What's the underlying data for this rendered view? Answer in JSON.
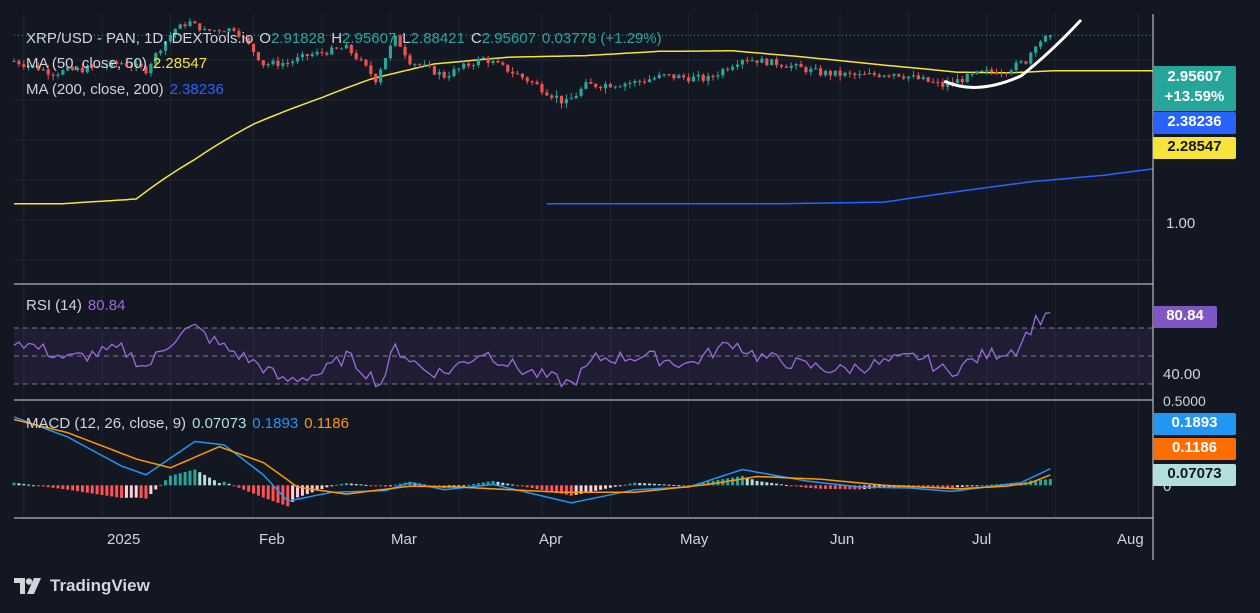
{
  "header": {
    "symbol": "XRP/USD - PAN, 1D, DEXTools.io",
    "open_label": "O",
    "open": "2.91828",
    "high_label": "H",
    "high": "2.95607",
    "low_label": "L",
    "low": "2.88421",
    "close_label": "C",
    "close": "2.95607",
    "change": "0.03778 (+1.29%)"
  },
  "ma50": {
    "label": "MA (50, close, 50)",
    "value": "2.28547",
    "color": "#f7e43b"
  },
  "ma200": {
    "label": "MA (200, close, 200)",
    "value": "2.38236",
    "color": "#2962ff"
  },
  "rsi": {
    "label": "RSI (14)",
    "value": "80.84",
    "color": "#9c6ade",
    "axis": [
      "40.00"
    ]
  },
  "macd": {
    "label": "MACD (12, 26, close, 9)",
    "hist": "0.07073",
    "macd": "0.1893",
    "signal": "0.1186",
    "axis": [
      "0.5000",
      "0"
    ]
  },
  "price_axis": {
    "label_1": "1.00"
  },
  "badges": {
    "price": "2.95607",
    "price_change": "+13.59%",
    "ma200": "2.38236",
    "ma50": "2.28547",
    "rsi": "80.84",
    "macd": "0.1893",
    "signal": "0.1186",
    "hist": "0.07073"
  },
  "x_axis": [
    "2025",
    "Feb",
    "Mar",
    "Apr",
    "May",
    "Jun",
    "Jul",
    "Aug"
  ],
  "brand": "TradingView",
  "colors": {
    "up": "#26a69a",
    "down": "#ef5350",
    "bg": "#131722",
    "macd": "#2196f3",
    "signal": "#ff9800",
    "arrow": "#ffffff"
  },
  "chart_data": {
    "type": "candlestick",
    "x_range": [
      "2024-12-14",
      "2025-08-04"
    ],
    "price_ylim": [
      0.5,
      3.35
    ],
    "price_anchors": [
      [
        "2024-12-14",
        2.45
      ],
      [
        "2024-12-22",
        2.25
      ],
      [
        "2025-01-01",
        2.35
      ],
      [
        "2025-01-05",
        2.42
      ],
      [
        "2025-01-10",
        2.3
      ],
      [
        "2025-01-16",
        3.1
      ],
      [
        "2025-01-19",
        3.25
      ],
      [
        "2025-01-22",
        3.05
      ],
      [
        "2025-01-28",
        3.1
      ],
      [
        "2025-02-03",
        2.4
      ],
      [
        "2025-02-08",
        2.42
      ],
      [
        "2025-02-12",
        2.55
      ],
      [
        "2025-02-20",
        2.7
      ],
      [
        "2025-02-26",
        2.15
      ],
      [
        "2025-03-02",
        2.9
      ],
      [
        "2025-03-05",
        2.45
      ],
      [
        "2025-03-12",
        2.2
      ],
      [
        "2025-03-20",
        2.5
      ],
      [
        "2025-03-28",
        2.18
      ],
      [
        "2025-04-06",
        1.8
      ],
      [
        "2025-04-10",
        2.05
      ],
      [
        "2025-04-20",
        2.1
      ],
      [
        "2025-04-26",
        2.2
      ],
      [
        "2025-05-05",
        2.15
      ],
      [
        "2025-05-12",
        2.5
      ],
      [
        "2025-05-20",
        2.4
      ],
      [
        "2025-05-28",
        2.25
      ],
      [
        "2025-06-05",
        2.2
      ],
      [
        "2025-06-12",
        2.25
      ],
      [
        "2025-06-22",
        2.05
      ],
      [
        "2025-06-30",
        2.25
      ],
      [
        "2025-07-05",
        2.3
      ],
      [
        "2025-07-09",
        2.45
      ],
      [
        "2025-07-11",
        2.78
      ],
      [
        "2025-07-14",
        2.95607
      ]
    ],
    "ma50_anchors": [
      [
        "2024-12-14",
        0.87
      ],
      [
        "2024-12-24",
        0.87
      ],
      [
        "2025-01-08",
        0.9
      ],
      [
        "2025-01-20",
        1.2
      ],
      [
        "2025-02-01",
        1.55
      ],
      [
        "2025-02-15",
        1.88
      ],
      [
        "2025-02-25",
        2.15
      ],
      [
        "2025-03-10",
        2.4
      ],
      [
        "2025-03-25",
        2.52
      ],
      [
        "2025-04-10",
        2.55
      ],
      [
        "2025-04-25",
        2.63
      ],
      [
        "2025-05-10",
        2.64
      ],
      [
        "2025-05-25",
        2.52
      ],
      [
        "2025-06-10",
        2.38
      ],
      [
        "2025-06-25",
        2.26
      ],
      [
        "2025-07-06",
        2.25
      ],
      [
        "2025-07-15",
        2.28547
      ],
      [
        "2025-08-04",
        2.285
      ]
    ],
    "ma200_anchors": [
      [
        "2025-04-02",
        0.87
      ],
      [
        "2025-05-20",
        0.87
      ],
      [
        "2025-06-10",
        0.88
      ],
      [
        "2025-06-25",
        0.95
      ],
      [
        "2025-07-10",
        1.02
      ],
      [
        "2025-07-25",
        1.07
      ],
      [
        "2025-08-04",
        1.12
      ]
    ],
    "rsi_ylim": [
      20,
      100
    ],
    "rsi_levels": [
      70,
      50,
      30
    ],
    "rsi_anchors": [
      [
        "2024-12-14",
        62
      ],
      [
        "2024-12-25",
        48
      ],
      [
        "2025-01-05",
        55
      ],
      [
        "2025-01-10",
        42
      ],
      [
        "2025-01-17",
        67
      ],
      [
        "2025-01-20",
        70
      ],
      [
        "2025-01-25",
        58
      ],
      [
        "2025-02-03",
        42
      ],
      [
        "2025-02-07",
        32
      ],
      [
        "2025-02-15",
        38
      ],
      [
        "2025-02-20",
        50
      ],
      [
        "2025-02-27",
        30
      ],
      [
        "2025-03-02",
        56
      ],
      [
        "2025-03-08",
        40
      ],
      [
        "2025-03-12",
        38
      ],
      [
        "2025-03-20",
        53
      ],
      [
        "2025-03-28",
        40
      ],
      [
        "2025-04-07",
        30
      ],
      [
        "2025-04-12",
        48
      ],
      [
        "2025-04-22",
        50
      ],
      [
        "2025-05-01",
        44
      ],
      [
        "2025-05-10",
        60
      ],
      [
        "2025-05-15",
        50
      ],
      [
        "2025-05-25",
        43
      ],
      [
        "2025-06-01",
        40
      ],
      [
        "2025-06-10",
        45
      ],
      [
        "2025-06-17",
        50
      ],
      [
        "2025-06-23",
        38
      ],
      [
        "2025-06-30",
        50
      ],
      [
        "2025-07-07",
        55
      ],
      [
        "2025-07-11",
        75
      ],
      [
        "2025-07-14",
        80.84
      ]
    ],
    "macd_ylim": [
      -0.35,
      0.95
    ],
    "macd_anchors": [
      [
        "2024-12-14",
        0.78
      ],
      [
        "2024-12-25",
        0.55
      ],
      [
        "2025-01-05",
        0.22
      ],
      [
        "2025-01-10",
        0.12
      ],
      [
        "2025-01-20",
        0.5
      ],
      [
        "2025-01-26",
        0.46
      ],
      [
        "2025-02-03",
        0.12
      ],
      [
        "2025-02-08",
        -0.18
      ],
      [
        "2025-02-17",
        -0.08
      ],
      [
        "2025-02-28",
        -0.06
      ],
      [
        "2025-03-05",
        0.03
      ],
      [
        "2025-03-12",
        -0.05
      ],
      [
        "2025-03-22",
        0.01
      ],
      [
        "2025-04-07",
        -0.2
      ],
      [
        "2025-04-20",
        -0.05
      ],
      [
        "2025-05-01",
        -0.02
      ],
      [
        "2025-05-12",
        0.18
      ],
      [
        "2025-05-25",
        0.05
      ],
      [
        "2025-06-05",
        -0.02
      ],
      [
        "2025-06-15",
        -0.03
      ],
      [
        "2025-06-24",
        -0.07
      ],
      [
        "2025-07-02",
        -0.01
      ],
      [
        "2025-07-08",
        0.03
      ],
      [
        "2025-07-14",
        0.1893
      ]
    ],
    "signal_anchors": [
      [
        "2024-12-14",
        0.75
      ],
      [
        "2024-12-25",
        0.6
      ],
      [
        "2025-01-08",
        0.3
      ],
      [
        "2025-01-15",
        0.2
      ],
      [
        "2025-01-25",
        0.44
      ],
      [
        "2025-02-03",
        0.26
      ],
      [
        "2025-02-10",
        -0.02
      ],
      [
        "2025-02-20",
        -0.1
      ],
      [
        "2025-03-05",
        -0.01
      ],
      [
        "2025-03-15",
        -0.02
      ],
      [
        "2025-04-05",
        -0.08
      ],
      [
        "2025-04-20",
        -0.08
      ],
      [
        "2025-05-05",
        0.01
      ],
      [
        "2025-05-15",
        0.1
      ],
      [
        "2025-05-28",
        0.07
      ],
      [
        "2025-06-10",
        0.0
      ],
      [
        "2025-06-25",
        -0.04
      ],
      [
        "2025-07-05",
        -0.01
      ],
      [
        "2025-07-10",
        0.03
      ],
      [
        "2025-07-14",
        0.1186
      ]
    ],
    "annotation": "curved arrow pointing up-right from late June low"
  }
}
